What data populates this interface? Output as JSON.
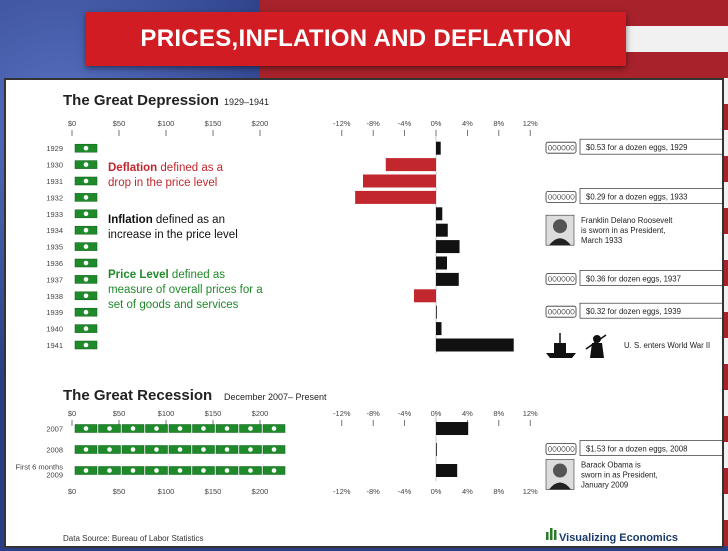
{
  "slide_title": "PRICES,INFLATION AND DEFLATION",
  "colors": {
    "deflation": "#c1272d",
    "inflation": "#111111",
    "money": "#1f8a2a",
    "title_bar": "#d01c22"
  },
  "definitions": [
    {
      "term": "Deflation",
      "text_line1": " defined as a",
      "text_line2": "drop in the price level",
      "term_color": "#c1272d"
    },
    {
      "term": "Inflation",
      "text_line1": " defined as an",
      "text_line2": "increase in the price level",
      "term_color": "#111111"
    },
    {
      "term": "Price Level",
      "text_line1": " defined as",
      "text_line2": "measure of overall prices for a",
      "text_line3": "set of goods and services",
      "term_color": "#1f8a2a"
    }
  ],
  "source": "Data Source: Bureau of Labor Statistics",
  "brand": "Visualizing Economics",
  "chart_data": [
    {
      "type": "bar",
      "title": "The Great Depression",
      "subtitle": "1929–1941",
      "bar_axis_ticks": [
        "$0",
        "$50",
        "$100",
        "$150",
        "$200"
      ],
      "change_axis_ticks": [
        "-12%",
        "-8%",
        "-4%",
        "0%",
        "4%",
        "8%",
        "12%"
      ],
      "xlim_percent": [
        -12,
        12
      ],
      "categories": [
        "1929",
        "1930",
        "1931",
        "1932",
        "1933",
        "1934",
        "1935",
        "1936",
        "1937",
        "1938",
        "1939",
        "1940",
        "1941"
      ],
      "series": [
        {
          "values": [
            0.6,
            -6.4,
            -9.3,
            -10.3,
            0.8,
            1.5,
            3.0,
            1.4,
            2.9,
            -2.8,
            0.0,
            0.7,
            9.9
          ]
        }
      ],
      "annotations": [
        {
          "year": "1929",
          "text": "$0.53 for a dozen eggs, 1929",
          "icon": "egg-carton-icon"
        },
        {
          "year": "1932",
          "text": "$0.29 for a dozen eggs, 1933",
          "icon": "egg-carton-icon"
        },
        {
          "year": "1934",
          "text": "Franklin Delano Roosevelt is sworn in as President, March 1933",
          "lines": [
            "Franklin Delano Roosevelt",
            "is sworn in as President,",
            "March 1933"
          ],
          "icon": "fdr-portrait-icon"
        },
        {
          "year": "1937",
          "text": "$0.36 for dozen eggs, 1937",
          "icon": "egg-carton-icon"
        },
        {
          "year": "1939",
          "text": "$0.32 for dozen eggs, 1939",
          "icon": "egg-carton-icon"
        },
        {
          "year": "1941",
          "text": "U. S. enters World War II",
          "icon": "battleship-soldier-icon"
        }
      ]
    },
    {
      "type": "bar",
      "title": "The Great Recession",
      "subtitle": "December 2007– Present",
      "bar_axis_ticks": [
        "$0",
        "$50",
        "$100",
        "$150",
        "$200"
      ],
      "change_axis_ticks": [
        "-12%",
        "-8%",
        "-4%",
        "0%",
        "4%",
        "8%",
        "12%"
      ],
      "xlim_percent": [
        -12,
        12
      ],
      "categories": [
        "2007",
        "2008",
        "First 6 months 2009"
      ],
      "category_lines": [
        [
          "2007"
        ],
        [
          "2008"
        ],
        [
          "First 6 months",
          "2009"
        ]
      ],
      "series": [
        {
          "values": [
            4.1,
            0.1,
            2.7
          ]
        }
      ],
      "annotations": [
        {
          "year": "2008",
          "text": "$1.53 for a dozen eggs, 2008",
          "icon": "egg-carton-icon"
        },
        {
          "year": "2009",
          "text": "Barack Obama is sworn in as President, January 2009",
          "lines": [
            "Barack Obama is",
            "sworn in as President,",
            "January 2009"
          ],
          "icon": "obama-portrait-icon"
        }
      ]
    }
  ]
}
